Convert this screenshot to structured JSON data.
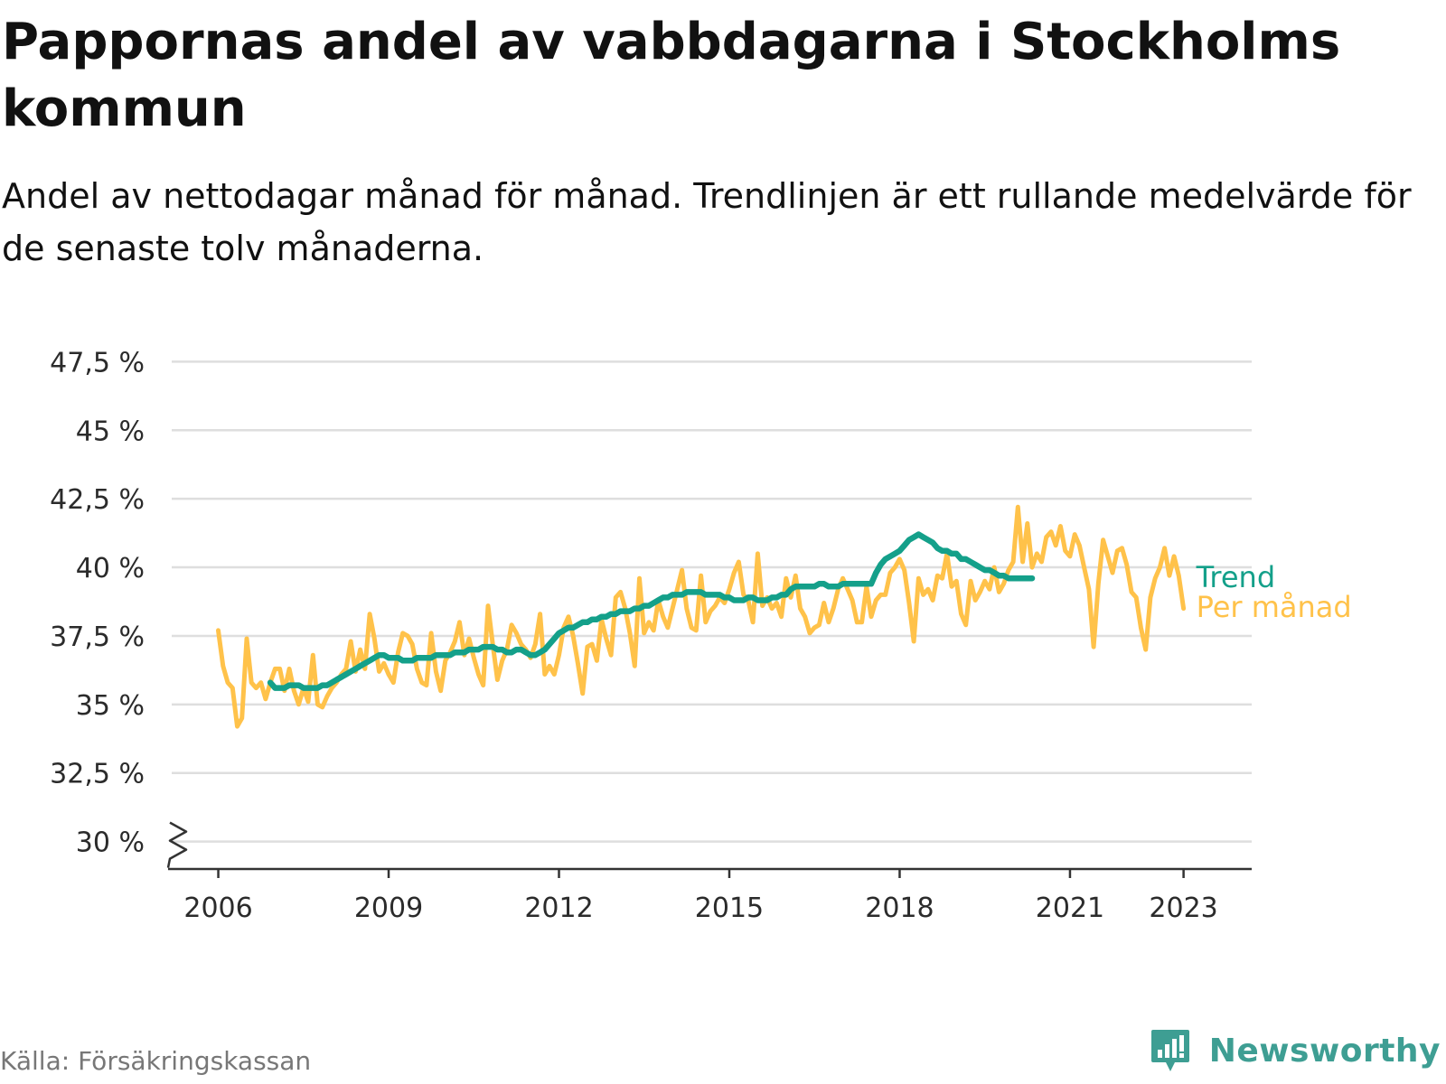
{
  "title": "Pappornas andel av vabbdagarna i Stockholms kommun",
  "subtitle": "Andel av nettodagar månad för månad. Trendlinjen är ett rullande medelvärde för de senaste tolv månaderna.",
  "source": "Källa: Försäkringskassan",
  "brand": {
    "name": "Newsworthy",
    "icon": "newsworthy-logo-icon",
    "color": "#3e9e93"
  },
  "chart_data": {
    "type": "line",
    "xlim": [
      2005.1,
      2024.2
    ],
    "ylim": [
      29,
      48.5
    ],
    "x_ticks": [
      2006,
      2009,
      2012,
      2015,
      2018,
      2021,
      2023
    ],
    "x_tick_labels": [
      "2006",
      "2009",
      "2012",
      "2015",
      "2018",
      "2021",
      "2023"
    ],
    "y_ticks": [
      30,
      32.5,
      35,
      37.5,
      40,
      42.5,
      45,
      47.5
    ],
    "y_tick_labels": [
      "30 %",
      "32,5 %",
      "35 %",
      "37,5 %",
      "40 %",
      "42,5 %",
      "45 %",
      "47,5 %"
    ],
    "axis_break": true,
    "grid": true,
    "legend_placement": "direct-labels-right",
    "series": [
      {
        "name": "Per månad",
        "color": "#ffc24a",
        "start": 2006.0,
        "step": 0.08333,
        "values": [
          37.7,
          36.4,
          35.8,
          35.6,
          34.2,
          34.5,
          37.4,
          35.8,
          35.6,
          35.8,
          35.2,
          35.8,
          36.3,
          36.3,
          35.5,
          36.3,
          35.5,
          35.0,
          35.6,
          35.1,
          36.8,
          35.0,
          34.9,
          35.3,
          35.6,
          35.8,
          36.1,
          36.3,
          37.3,
          36.2,
          37.0,
          36.3,
          38.3,
          37.4,
          36.2,
          36.5,
          36.1,
          35.8,
          36.9,
          37.6,
          37.5,
          37.2,
          36.3,
          35.8,
          35.7,
          37.6,
          36.2,
          35.5,
          36.6,
          36.9,
          37.3,
          38.0,
          36.8,
          37.4,
          36.7,
          36.1,
          35.7,
          38.6,
          37.2,
          35.9,
          36.6,
          37.0,
          37.9,
          37.6,
          37.2,
          37.0,
          36.7,
          37.2,
          38.3,
          36.1,
          36.4,
          36.1,
          36.8,
          37.8,
          38.2,
          37.5,
          36.5,
          35.4,
          37.1,
          37.2,
          36.6,
          38.1,
          37.4,
          36.8,
          38.9,
          39.1,
          38.5,
          37.6,
          36.4,
          39.6,
          37.6,
          38.0,
          37.7,
          38.8,
          38.2,
          37.8,
          38.5,
          39.2,
          39.9,
          38.5,
          37.8,
          37.7,
          39.7,
          38.0,
          38.4,
          38.6,
          38.9,
          38.7,
          39.2,
          39.8,
          40.2,
          39.0,
          38.8,
          38.0,
          40.5,
          38.6,
          38.9,
          38.5,
          38.7,
          38.2,
          39.6,
          38.9,
          39.7,
          38.5,
          38.2,
          37.6,
          37.8,
          37.9,
          38.7,
          38.0,
          38.5,
          39.2,
          39.6,
          39.2,
          38.8,
          38.0,
          38.0,
          39.3,
          38.2,
          38.8,
          39.0,
          39.0,
          39.8,
          40.0,
          40.3,
          39.9,
          38.7,
          37.3,
          39.6,
          39.0,
          39.2,
          38.8,
          39.7,
          39.6,
          40.5,
          39.3,
          39.5,
          38.3,
          37.9,
          39.5,
          38.8,
          39.1,
          39.5,
          39.2,
          40.0,
          39.1,
          39.4,
          39.9,
          40.2,
          42.2,
          40.2,
          41.6,
          40.0,
          40.5,
          40.2,
          41.1,
          41.3,
          40.8,
          41.5,
          40.6,
          40.4,
          41.2,
          40.8,
          40.0,
          39.2,
          37.1,
          39.4,
          41.0,
          40.4,
          39.8,
          40.6,
          40.7,
          40.1,
          39.1,
          38.9,
          37.8,
          37.0,
          38.9,
          39.6,
          40.0,
          40.7,
          39.7,
          40.4,
          39.7,
          38.5
        ]
      },
      {
        "name": "Trend",
        "color": "#14a08a",
        "start": 2006.9167,
        "step": 0.08333,
        "values": [
          35.8,
          35.6,
          35.6,
          35.6,
          35.7,
          35.7,
          35.7,
          35.6,
          35.6,
          35.6,
          35.6,
          35.7,
          35.7,
          35.8,
          35.9,
          36.0,
          36.1,
          36.2,
          36.3,
          36.4,
          36.5,
          36.6,
          36.7,
          36.8,
          36.8,
          36.7,
          36.7,
          36.7,
          36.6,
          36.6,
          36.6,
          36.7,
          36.7,
          36.7,
          36.7,
          36.8,
          36.8,
          36.8,
          36.8,
          36.9,
          36.9,
          36.9,
          37.0,
          37.0,
          37.0,
          37.1,
          37.1,
          37.1,
          37.0,
          37.0,
          36.9,
          36.9,
          37.0,
          37.0,
          36.9,
          36.8,
          36.8,
          36.9,
          37.0,
          37.2,
          37.4,
          37.6,
          37.7,
          37.8,
          37.8,
          37.9,
          38.0,
          38.0,
          38.1,
          38.1,
          38.2,
          38.2,
          38.3,
          38.3,
          38.4,
          38.4,
          38.4,
          38.5,
          38.5,
          38.6,
          38.6,
          38.7,
          38.8,
          38.9,
          38.9,
          39.0,
          39.0,
          39.0,
          39.1,
          39.1,
          39.1,
          39.1,
          39.0,
          39.0,
          39.0,
          39.0,
          38.9,
          38.9,
          38.8,
          38.8,
          38.8,
          38.9,
          38.9,
          38.8,
          38.8,
          38.8,
          38.9,
          38.9,
          39.0,
          39.0,
          39.2,
          39.3,
          39.3,
          39.3,
          39.3,
          39.3,
          39.4,
          39.4,
          39.3,
          39.3,
          39.3,
          39.4,
          39.4,
          39.4,
          39.4,
          39.4,
          39.4,
          39.4,
          39.8,
          40.1,
          40.3,
          40.4,
          40.5,
          40.6,
          40.8,
          41.0,
          41.1,
          41.2,
          41.1,
          41.0,
          40.9,
          40.7,
          40.6,
          40.6,
          40.5,
          40.5,
          40.3,
          40.3,
          40.2,
          40.1,
          40.0,
          39.9,
          39.9,
          39.8,
          39.7,
          39.7,
          39.6,
          39.6,
          39.6,
          39.6,
          39.6,
          39.6
        ]
      }
    ]
  }
}
